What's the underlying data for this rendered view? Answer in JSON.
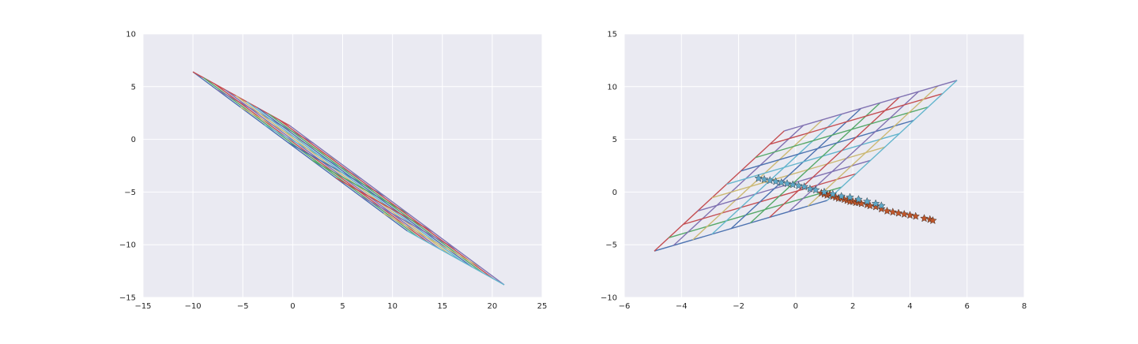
{
  "chart_data": [
    {
      "type": "line",
      "title": "",
      "xlabel": "",
      "ylabel": "",
      "xlim": [
        -15,
        25
      ],
      "ylim": [
        -15,
        10
      ],
      "grid": true,
      "xticks": [
        "−15",
        "−10",
        "−5",
        "0",
        "5",
        "10",
        "15",
        "20",
        "25"
      ],
      "yticks": [
        "−15",
        "−10",
        "−5",
        "0",
        "5",
        "10"
      ],
      "grid_lines": {
        "corners": {
          "origin": [
            -10,
            6.4
          ],
          "end": [
            21.2,
            -13.6
          ],
          "u_end": [
            -0.3,
            1.3
          ],
          "v_end": [
            11.5,
            -8.7
          ]
        },
        "n_lines": 10
      },
      "series": []
    },
    {
      "type": "line",
      "title": "",
      "xlabel": "",
      "ylabel": "",
      "xlim": [
        -6,
        8
      ],
      "ylim": [
        -10,
        15
      ],
      "grid": true,
      "xticks": [
        "−6",
        "−4",
        "−2",
        "0",
        "2",
        "4",
        "6",
        "8"
      ],
      "yticks": [
        "−10",
        "−5",
        "0",
        "5",
        "10",
        "15"
      ],
      "grid_lines": {
        "corners": {
          "origin": [
            -4.95,
            -5.6
          ],
          "end": [
            5.6,
            10.8
          ],
          "u_end": [
            -0.4,
            5.8
          ],
          "v_end": [
            1.1,
            -0.8
          ]
        },
        "n_lines": 10
      },
      "scatter_series": [
        {
          "marker": "star",
          "color": "#c0562a",
          "points": [
            [
              0.9,
              -0.1
            ],
            [
              1.0,
              -0.2
            ],
            [
              1.1,
              -0.3
            ],
            [
              1.2,
              -0.2
            ],
            [
              1.3,
              -0.4
            ],
            [
              1.4,
              -0.5
            ],
            [
              1.5,
              -0.6
            ],
            [
              1.6,
              -0.6
            ],
            [
              1.7,
              -0.7
            ],
            [
              1.8,
              -0.8
            ],
            [
              1.9,
              -0.9
            ],
            [
              2.0,
              -0.9
            ],
            [
              2.1,
              -1.0
            ],
            [
              2.2,
              -1.0
            ],
            [
              2.3,
              -1.1
            ],
            [
              2.5,
              -1.2
            ],
            [
              2.6,
              -1.3
            ],
            [
              2.8,
              -1.4
            ],
            [
              3.0,
              -1.6
            ],
            [
              3.2,
              -1.8
            ],
            [
              3.4,
              -1.9
            ],
            [
              3.6,
              -2.0
            ],
            [
              3.8,
              -2.1
            ],
            [
              4.0,
              -2.2
            ],
            [
              4.2,
              -2.3
            ],
            [
              4.5,
              -2.5
            ],
            [
              4.7,
              -2.6
            ],
            [
              4.8,
              -2.7
            ]
          ]
        },
        {
          "marker": "star",
          "color": "#5fa8c8",
          "points": [
            [
              -1.3,
              1.3
            ],
            [
              -1.1,
              1.2
            ],
            [
              -0.9,
              1.1
            ],
            [
              -0.7,
              1.0
            ],
            [
              -0.5,
              0.9
            ],
            [
              -0.3,
              0.8
            ],
            [
              -0.1,
              0.7
            ],
            [
              0.1,
              0.6
            ],
            [
              0.3,
              0.5
            ],
            [
              0.5,
              0.3
            ],
            [
              0.7,
              0.2
            ],
            [
              1.0,
              0.0
            ],
            [
              1.3,
              -0.2
            ],
            [
              1.6,
              -0.4
            ],
            [
              1.9,
              -0.5
            ],
            [
              2.2,
              -0.7
            ],
            [
              2.5,
              -0.9
            ],
            [
              2.8,
              -1.1
            ],
            [
              3.0,
              -1.3
            ]
          ]
        }
      ],
      "series": []
    }
  ],
  "palette": [
    "#4c72b0",
    "#55a868",
    "#c44e52",
    "#8172b2",
    "#ccb974",
    "#64b5cd"
  ]
}
